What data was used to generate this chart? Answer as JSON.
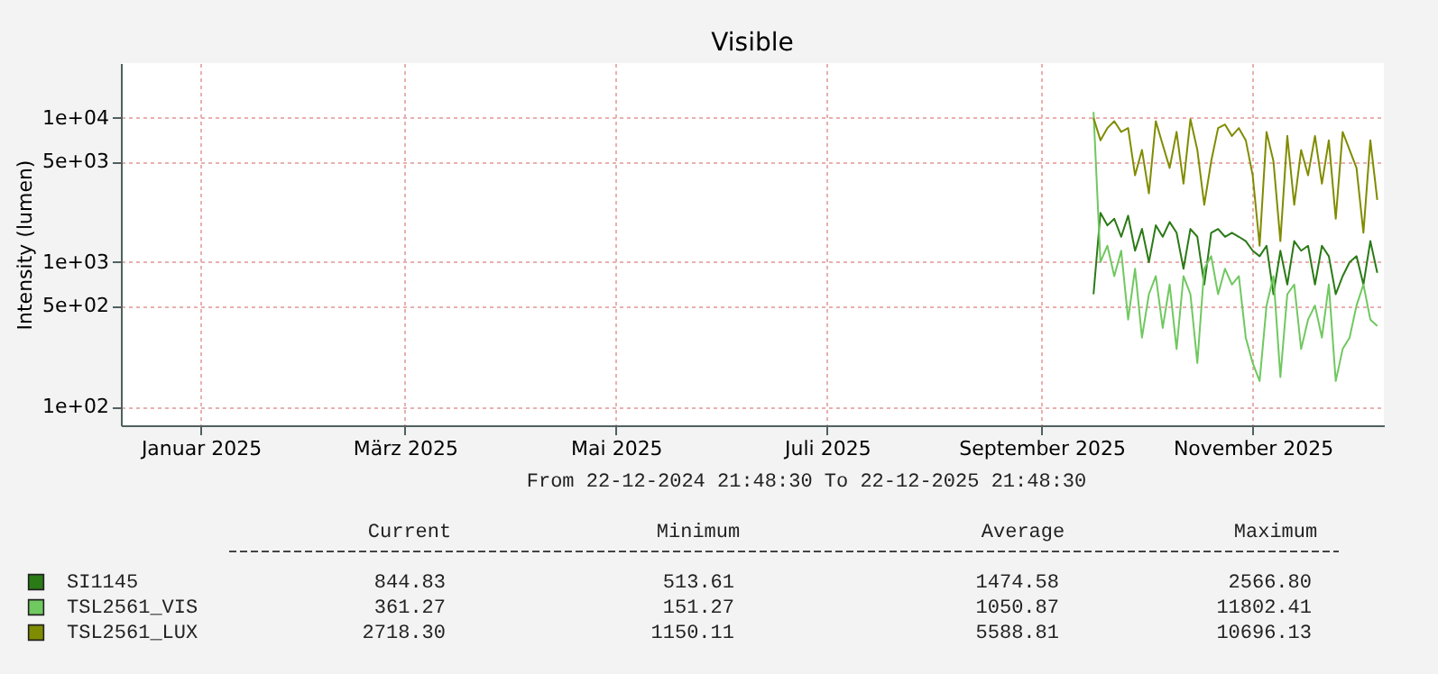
{
  "chart_data": {
    "type": "line",
    "title": "Visible",
    "ylabel": "Intensity (lumen)",
    "annotations": [
      "From 22-12-2024 21:48:30 To 22-12-2025 21:48:30",
      "Current",
      "Minimum",
      "Average",
      "Maximum",
      "844.83",
      "513.61",
      "1474.58",
      "2566.80",
      "361.27",
      "151.27",
      "1050.87",
      "11802.41",
      "2718.30",
      "1150.11",
      "5588.81",
      "10696.13"
    ],
    "x": [
      "2025-09-30",
      "2025-10-02",
      "2025-10-04",
      "2025-10-06",
      "2025-10-08",
      "2025-10-10",
      "2025-10-12",
      "2025-10-14",
      "2025-10-16",
      "2025-10-18",
      "2025-10-20",
      "2025-10-22",
      "2025-10-24",
      "2025-10-26",
      "2025-10-28",
      "2025-10-30",
      "2025-11-01",
      "2025-11-03",
      "2025-11-05",
      "2025-11-07",
      "2025-11-09",
      "2025-11-11",
      "2025-11-13",
      "2025-11-15",
      "2025-11-17",
      "2025-11-19",
      "2025-11-21",
      "2025-11-23",
      "2025-11-25",
      "2025-11-27",
      "2025-11-29",
      "2025-12-01",
      "2025-12-03",
      "2025-12-05",
      "2025-12-07",
      "2025-12-09",
      "2025-12-11",
      "2025-12-13",
      "2025-12-15",
      "2025-12-17",
      "2025-12-19",
      "2025-12-21"
    ],
    "series": [
      {
        "name": "SI1145",
        "color": "#2a7a16",
        "values": [
          600,
          2200,
          1800,
          2000,
          1500,
          2100,
          1200,
          1700,
          1000,
          1800,
          1500,
          1900,
          1600,
          900,
          1700,
          1500,
          700,
          1600,
          1700,
          1500,
          1600,
          1500,
          1400,
          1200,
          1100,
          1300,
          600,
          1200,
          700,
          1400,
          1200,
          1300,
          700,
          1300,
          1100,
          600,
          800,
          1000,
          1100,
          700,
          1400,
          845
        ]
      },
      {
        "name": "TSL2561_VIS",
        "color": "#70c860",
        "values": [
          11000,
          1000,
          1300,
          800,
          1200,
          400,
          900,
          300,
          600,
          800,
          350,
          700,
          250,
          800,
          600,
          200,
          900,
          1100,
          600,
          900,
          700,
          800,
          300,
          200,
          150,
          500,
          800,
          160,
          600,
          700,
          250,
          400,
          500,
          300,
          700,
          150,
          250,
          300,
          500,
          700,
          400,
          361
        ]
      },
      {
        "name": "TSL2561_LUX",
        "color": "#808c00",
        "values": [
          10000,
          7000,
          8500,
          9500,
          8000,
          8500,
          4000,
          6000,
          3000,
          9500,
          6500,
          4500,
          8000,
          3500,
          9800,
          6000,
          2500,
          5000,
          8500,
          9000,
          7500,
          8500,
          7000,
          4000,
          1300,
          8000,
          5000,
          1400,
          7500,
          2500,
          6000,
          4000,
          7500,
          3500,
          7000,
          2000,
          8000,
          6000,
          4500,
          1600,
          7000,
          2700
        ]
      }
    ],
    "xlim": [
      "2024-12-22T21:48",
      "2025-12-22T21:48"
    ],
    "xticks": [
      {
        "value": "2025-01-15",
        "label": "Januar 2025"
      },
      {
        "value": "2025-03-15",
        "label": "März 2025"
      },
      {
        "value": "2025-05-15",
        "label": "Mai 2025"
      },
      {
        "value": "2025-07-15",
        "label": "Juli 2025"
      },
      {
        "value": "2025-09-15",
        "label": "September 2025"
      },
      {
        "value": "2025-11-15",
        "label": "November 2025"
      }
    ],
    "ylim": [
      74,
      24000
    ],
    "yticks": [
      {
        "value": 100,
        "label": "1e+02"
      },
      {
        "value": 500,
        "label": "5e+02"
      },
      {
        "value": 1000,
        "label": "1e+03"
      },
      {
        "value": 5000,
        "label": "5e+03"
      },
      {
        "value": 10000,
        "label": "1e+04"
      }
    ],
    "log": true,
    "grid": true,
    "legend": "bottom",
    "marker": "none",
    "line_style": "solid"
  }
}
